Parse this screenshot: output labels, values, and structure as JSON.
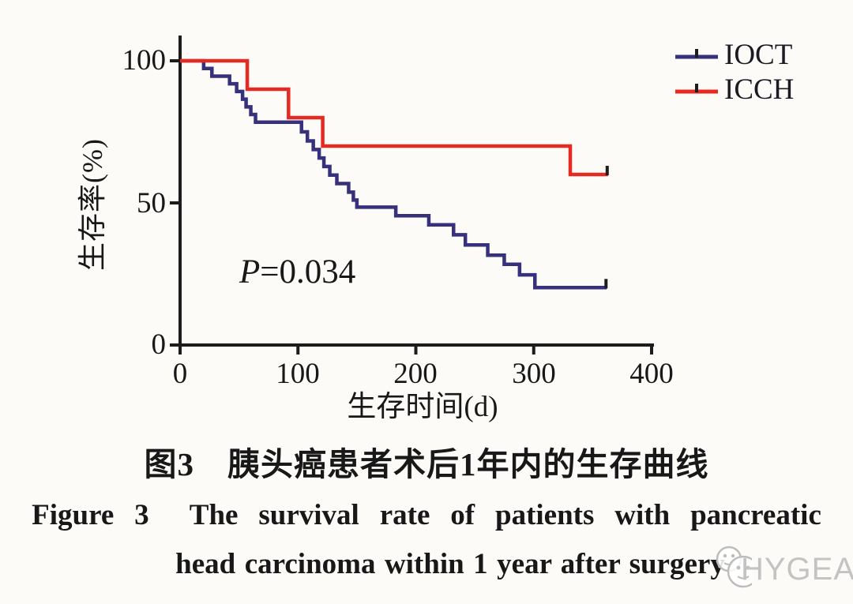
{
  "chart_data": {
    "type": "line",
    "chart_kind": "kaplan-meier-survival-step",
    "title": "",
    "xlabel": "生存时间(d)",
    "ylabel": "生存率(%)",
    "xlim": [
      0,
      400
    ],
    "ylim": [
      0,
      100
    ],
    "x_ticks": [
      0,
      100,
      200,
      300,
      400
    ],
    "y_ticks": [
      0,
      50,
      100
    ],
    "x_tick_labels": [
      "0",
      "100",
      "200",
      "300",
      "400"
    ],
    "y_tick_labels_top_to_bottom": [
      "100",
      "50",
      "0"
    ],
    "grid": false,
    "legend_position": "top-right",
    "annotation_p": "P",
    "annotation_value": "=0.034",
    "series": [
      {
        "name": "IOCT",
        "color": "#37307c",
        "start_pct": 100,
        "drops": [
          [
            20,
            97.3
          ],
          [
            27,
            94.6
          ],
          [
            42,
            91.9
          ],
          [
            48,
            89.2
          ],
          [
            53,
            86.5
          ],
          [
            56,
            83.8
          ],
          [
            60,
            81.1
          ],
          [
            64,
            78.4
          ],
          [
            103,
            75.0
          ],
          [
            108,
            71.8
          ],
          [
            113,
            68.8
          ],
          [
            118,
            65.8
          ],
          [
            122,
            62.8
          ],
          [
            127,
            59.8
          ],
          [
            133,
            56.8
          ],
          [
            143,
            53.8
          ],
          [
            147,
            51.0
          ],
          [
            150,
            48.5
          ],
          [
            183,
            45.5
          ],
          [
            211,
            42.3
          ],
          [
            232,
            38.8
          ],
          [
            242,
            35.2
          ],
          [
            261,
            31.6
          ],
          [
            275,
            28.4
          ],
          [
            288,
            24.7
          ],
          [
            301,
            20.2
          ]
        ],
        "end_day": 362,
        "censored_at_end": true
      },
      {
        "name": "ICCH",
        "color": "#e62a21",
        "start_pct": 100,
        "drops": [
          [
            57,
            90
          ],
          [
            92,
            80
          ],
          [
            121,
            70
          ],
          [
            331,
            60
          ]
        ],
        "end_day": 363,
        "censored_at_end": true
      }
    ]
  },
  "captions": {
    "zh": "图3　胰头癌患者术后1年内的生存曲线",
    "en_line1": "Figure 3  The survival rate of patients with pancreatic",
    "en_line2": "head carcinoma within 1 year after surgery"
  },
  "watermark": {
    "text": "HYGEA"
  },
  "colors": {
    "axis": "#1c1c1c",
    "censor_tick": "#1d1d1d",
    "background": "#fcfbf8",
    "watermark": "#c3c3c3"
  }
}
